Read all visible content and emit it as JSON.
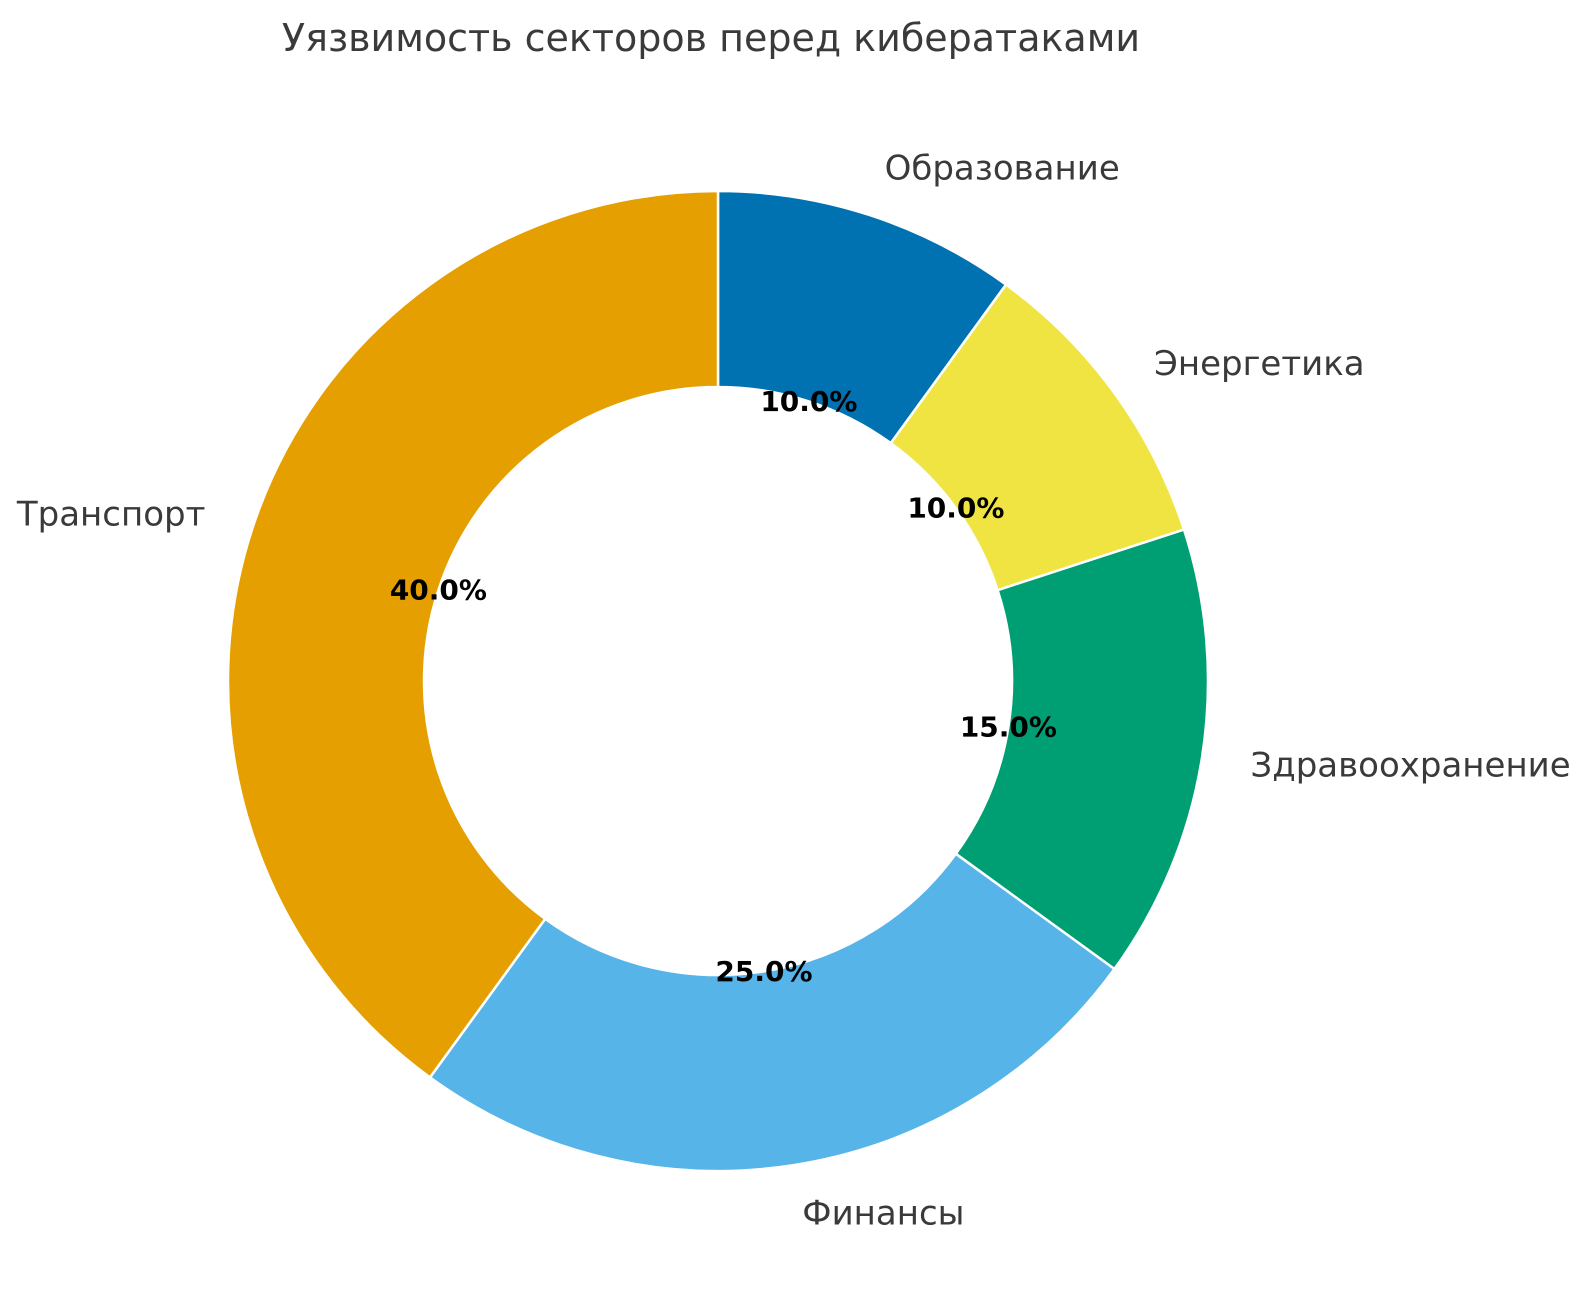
{
  "title": "Уязвимость секторов перед кибератаками",
  "chart_data": {
    "type": "pie",
    "subtype": "donut",
    "title": "Уязвимость секторов перед кибератаками",
    "categories": [
      "Образование",
      "Энергетика",
      "Здравоохранение",
      "Финансы",
      "Транспорт"
    ],
    "values": [
      10,
      10,
      15,
      25,
      40
    ],
    "pct_labels": [
      "10.0%",
      "10.0%",
      "15.0%",
      "25.0%",
      "40.0%"
    ],
    "colors": [
      "#0072b2",
      "#f0e442",
      "#009e73",
      "#56b4e9",
      "#e69f00"
    ],
    "direction": "clockwise",
    "start_angle_deg_from_top": 0,
    "donut_hole_ratio": 0.6,
    "pct_label_distance": 0.6,
    "category_label_distance": 1.1,
    "wedge_edge_color": "#ffffff",
    "wedge_edge_width": 2.5,
    "text_color": "#3a3a3a",
    "pct_text_color": "#000000",
    "legend": "none",
    "background_color": "#ffffff"
  }
}
